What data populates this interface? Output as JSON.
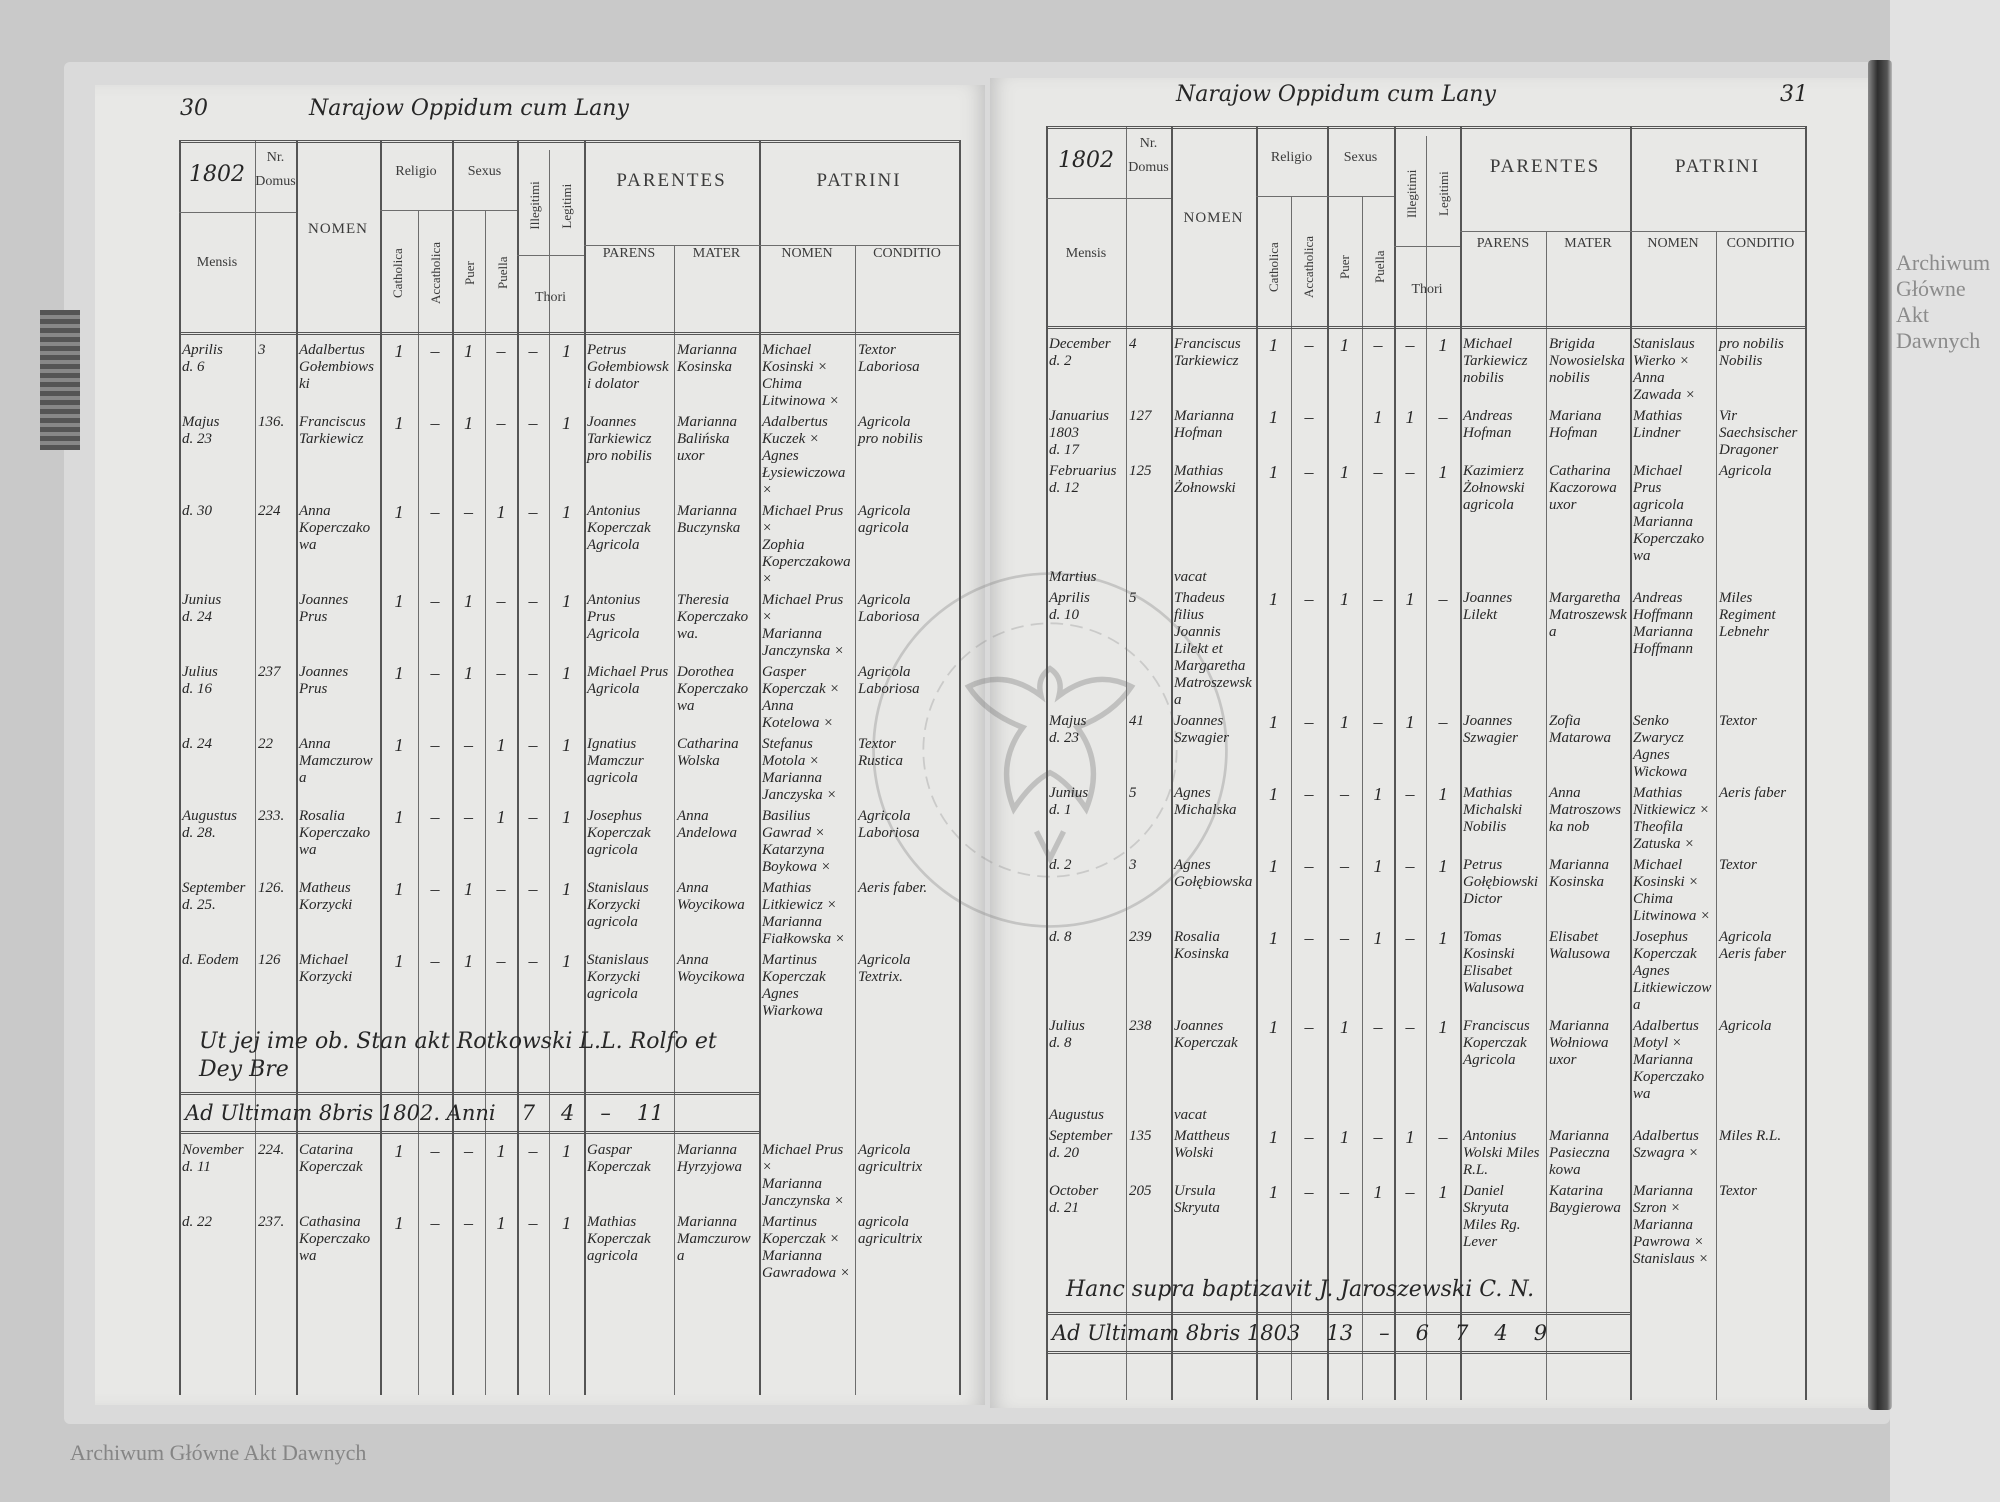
{
  "watermark": "Archiwum Główne Akt Dawnych",
  "seal_text": "ARCHIWUM GŁÓWNE AKT DAWNYCH",
  "header": {
    "mensis": "Mensis",
    "nr": "Nr.",
    "domus": "Domus",
    "nomen": "NOMEN",
    "religio": "Religio",
    "catholica": "Catholica",
    "acatholica": "Accatholica",
    "sexus": "Sexus",
    "puer": "Puer",
    "puella": "Puella",
    "illegitimi": "Illegitimi",
    "legitimi": "Legitimi",
    "thori": "Thori",
    "parentes": "PARENTES",
    "parens": "PARENS",
    "mater": "MATER",
    "patrini": "PATRINI",
    "patrini_nomen": "NOMEN",
    "conditio": "CONDITIO"
  },
  "left_page": {
    "page_number": "30",
    "title": "Narajow Oppidum cum Lany",
    "year": "1802",
    "entries": [
      {
        "mensis": "Aprilis",
        "dies": "d. 6",
        "nr": "3",
        "nomen": "Adalbertus Gołembiowski",
        "marks": [
          "1",
          "–",
          "1",
          "–",
          "–",
          "1"
        ],
        "parens": "Petrus Gołembiowski dolator",
        "mater": "Marianna Kosinska",
        "patrini": "Michael Kosinski ×\nChima Litwinowa ×",
        "conditio": "Textor\nLaboriosa"
      },
      {
        "mensis": "Majus",
        "dies": "d. 23",
        "nr": "136.",
        "nomen": "Franciscus Tarkiewicz",
        "marks": [
          "1",
          "–",
          "1",
          "–",
          "–",
          "1"
        ],
        "parens": "Joannes Tarkiewicz pro nobilis",
        "mater": "Marianna Balińska uxor",
        "patrini": "Adalbertus Kuczek ×\nAgnes Łysiewiczowa ×",
        "conditio": "Agricola\npro nobilis"
      },
      {
        "mensis": "",
        "dies": "d. 30",
        "nr": "224",
        "nomen": "Anna Koperczakowa",
        "marks": [
          "1",
          "–",
          "–",
          "1",
          "–",
          "1"
        ],
        "parens": "Antonius Koperczak Agricola",
        "mater": "Marianna Buczynska",
        "patrini": "Michael Prus ×\nZophia Koperczakowa ×",
        "conditio": "Agricola\nagricola"
      },
      {
        "mensis": "Junius",
        "dies": "d. 24",
        "nr": "",
        "nomen": "Joannes Prus",
        "marks": [
          "1",
          "–",
          "1",
          "–",
          "–",
          "1"
        ],
        "parens": "Antonius Prus Agricola",
        "mater": "Theresia Koperczakowa.",
        "patrini": "Michael Prus ×\nMarianna Janczynska ×",
        "conditio": "Agricola\nLaboriosa"
      },
      {
        "mensis": "Julius",
        "dies": "d. 16",
        "nr": "237",
        "nomen": "Joannes Prus",
        "marks": [
          "1",
          "–",
          "1",
          "–",
          "–",
          "1"
        ],
        "parens": "Michael Prus Agricola",
        "mater": "Dorothea Koperczakowa",
        "patrini": "Gasper Koperczak ×\nAnna Kotelowa ×",
        "conditio": "Agricola\nLaboriosa"
      },
      {
        "mensis": "",
        "dies": "d. 24",
        "nr": "22",
        "nomen": "Anna Mamczurowa",
        "marks": [
          "1",
          "–",
          "–",
          "1",
          "–",
          "1"
        ],
        "parens": "Ignatius Mamczur agricola",
        "mater": "Catharina Wolska",
        "patrini": "Stefanus Motola ×\nMarianna Janczyska ×",
        "conditio": "Textor\nRustica"
      },
      {
        "mensis": "Augustus",
        "dies": "d. 28.",
        "nr": "233.",
        "nomen": "Rosalia Koperczakowa",
        "marks": [
          "1",
          "–",
          "–",
          "1",
          "–",
          "1"
        ],
        "parens": "Josephus Koperczak agricola",
        "mater": "Anna Andelowa",
        "patrini": "Basilius Gawrad ×\nKatarzyna Boykowa ×",
        "conditio": "Agricola\nLaboriosa"
      },
      {
        "mensis": "September",
        "dies": "d. 25.",
        "nr": "126.",
        "nomen": "Matheus Korzycki",
        "marks": [
          "1",
          "–",
          "1",
          "–",
          "–",
          "1"
        ],
        "parens": "Stanislaus Korzycki agricola",
        "mater": "Anna Woycikowa",
        "patrini": "Mathias Litkiewicz ×\nMarianna Fiałkowska ×",
        "conditio": "Aeris faber."
      },
      {
        "mensis": "",
        "dies": "d. Eodem",
        "nr": "126",
        "nomen": "Michael Korzycki",
        "marks": [
          "1",
          "–",
          "1",
          "–",
          "–",
          "1"
        ],
        "parens": "Stanislaus Korzycki agricola",
        "mater": "Anna Woycikowa",
        "patrini": "Martinus Koperczak\nAgnes Wiarkowa",
        "conditio": "Agricola\nTextrix."
      },
      {
        "mensis": "November",
        "dies": "d. 11",
        "nr": "224.",
        "nomen": "Catarina Koperczak",
        "marks": [
          "1",
          "–",
          "–",
          "1",
          "–",
          "1"
        ],
        "parens": "Gaspar Koperczak",
        "mater": "Marianna Hyrzyjowa",
        "patrini": "Michael Prus ×\nMarianna Janczynska ×",
        "conditio": "Agricola\nagricultrix"
      },
      {
        "mensis": "",
        "dies": "d. 22",
        "nr": "237.",
        "nomen": "Cathasina Koperczakowa",
        "marks": [
          "1",
          "–",
          "–",
          "1",
          "–",
          "1"
        ],
        "parens": "Mathias Koperczak agricola",
        "mater": "Marianna Mamczurowa",
        "patrini": "Martinus Koperczak ×\nMarianna Gawradowa ×",
        "conditio": "agricola\nagricultrix"
      }
    ],
    "note": "Ut jej ime ob. Stan akt Rotkowski  L.L. Rolfo et Dey Bre",
    "totals": {
      "label": "Ad Ultimam 8bris 1802. Anni",
      "values": [
        "7",
        "4",
        "–",
        "11"
      ]
    }
  },
  "right_page": {
    "page_number": "31",
    "title": "Narajow Oppidum cum Lany",
    "year": "1802",
    "entries": [
      {
        "mensis": "December",
        "dies": "d. 2",
        "nr": "4",
        "nomen": "Franciscus Tarkiewicz",
        "marks": [
          "1",
          "–",
          "1",
          "–",
          "–",
          "1"
        ],
        "parens": "Michael Tarkiewicz nobilis",
        "mater": "Brigida Nowosielska nobilis",
        "patrini": "Stanislaus Wierko ×\nAnna Zawada ×",
        "conditio": "pro nobilis\nNobilis"
      },
      {
        "mensis": "Januarius 1803",
        "dies": "d. 17",
        "nr": "127",
        "nomen": "Marianna Hofman",
        "marks": [
          "1",
          "–",
          "",
          "1",
          "1",
          "–"
        ],
        "parens": "Andreas Hofman",
        "mater": "Mariana Hofman",
        "patrini": "Mathias Lindner",
        "conditio": "Vir Saechsischer Dragoner"
      },
      {
        "mensis": "Februarius",
        "dies": "d. 12",
        "nr": "125",
        "nomen": "Mathias Żołnowski",
        "marks": [
          "1",
          "–",
          "1",
          "–",
          "–",
          "1"
        ],
        "parens": "Kazimierz Żołnowski agricola",
        "mater": "Catharina Kaczorowa uxor",
        "patrini": "Michael Prus agricola\nMarianna Koperczakowa",
        "conditio": "Agricola"
      },
      {
        "mensis": "Martius",
        "dies": "",
        "nr": "",
        "nomen": "vacat",
        "marks": [
          "",
          "",
          "",
          "",
          "",
          ""
        ],
        "parens": "",
        "mater": "",
        "patrini": "",
        "conditio": ""
      },
      {
        "mensis": "Aprilis",
        "dies": "d. 10",
        "nr": "5",
        "nomen": "Thadeus filius Joannis Lilekt et Margaretha Matroszewska",
        "marks": [
          "1",
          "–",
          "1",
          "–",
          "1",
          "–"
        ],
        "parens": "Joannes Lilekt",
        "mater": "Margaretha Matroszewska",
        "patrini": "Andreas Hoffmann\nMarianna Hoffmann",
        "conditio": "Miles Regiment Lebnehr"
      },
      {
        "mensis": "Majus",
        "dies": "d. 23",
        "nr": "41",
        "nomen": "Joannes Szwagier",
        "marks": [
          "1",
          "–",
          "1",
          "–",
          "1",
          "–"
        ],
        "parens": "Joannes Szwagier",
        "mater": "Zofia Matarowa",
        "patrini": "Senko Zwarycz\nAgnes Wickowa",
        "conditio": "Textor"
      },
      {
        "mensis": "Junius",
        "dies": "d. 1",
        "nr": "5",
        "nomen": "Agnes Michalska",
        "marks": [
          "1",
          "–",
          "–",
          "1",
          "–",
          "1"
        ],
        "parens": "Mathias Michalski Nobilis",
        "mater": "Anna Matroszowska nob",
        "patrini": "Mathias Nitkiewicz ×\nTheofila Zatuska ×",
        "conditio": "Aeris faber"
      },
      {
        "mensis": "",
        "dies": "d. 2",
        "nr": "3",
        "nomen": "Agnes Gołębiowska",
        "marks": [
          "1",
          "–",
          "–",
          "1",
          "–",
          "1"
        ],
        "parens": "Petrus Gołębiowski Dictor",
        "mater": "Marianna Kosinska",
        "patrini": "Michael Kosinski ×\nChima Litwinowa ×",
        "conditio": "Textor"
      },
      {
        "mensis": "",
        "dies": "d. 8",
        "nr": "239",
        "nomen": "Rosalia Kosinska",
        "marks": [
          "1",
          "–",
          "–",
          "1",
          "–",
          "1"
        ],
        "parens": "Tomas Kosinski Elisabet Walusowa",
        "mater": "Elisabet Walusowa",
        "patrini": "Josephus Koperczak\nAgnes Litkiewiczowa",
        "conditio": "Agricola\nAeris faber"
      },
      {
        "mensis": "Julius",
        "dies": "d. 8",
        "nr": "238",
        "nomen": "Joannes Koperczak",
        "marks": [
          "1",
          "–",
          "1",
          "–",
          "–",
          "1"
        ],
        "parens": "Franciscus Koperczak Agricola",
        "mater": "Marianna Wołniowa uxor",
        "patrini": "Adalbertus Motyl ×\nMarianna Koperczakowa",
        "conditio": "Agricola"
      },
      {
        "mensis": "Augustus",
        "dies": "",
        "nr": "",
        "nomen": "vacat",
        "marks": [
          "",
          "",
          "",
          "",
          "",
          ""
        ],
        "parens": "",
        "mater": "",
        "patrini": "",
        "conditio": ""
      },
      {
        "mensis": "September",
        "dies": "d. 20",
        "nr": "135",
        "nomen": "Mattheus Wolski",
        "marks": [
          "1",
          "–",
          "1",
          "–",
          "1",
          "–"
        ],
        "parens": "Antonius Wolski Miles R.L.",
        "mater": "Marianna Pasieczna kowa",
        "patrini": "Adalbertus Szwagra ×",
        "conditio": "Miles R.L."
      },
      {
        "mensis": "October",
        "dies": "d. 21",
        "nr": "205",
        "nomen": "Ursula Skryuta",
        "marks": [
          "1",
          "–",
          "–",
          "1",
          "–",
          "1"
        ],
        "parens": "Daniel Skryuta Miles Rg. Lever",
        "mater": "Katarina Baygierowa",
        "patrini": "Marianna Szron ×\nMarianna Pawrowa ×\nStanislaus ×",
        "conditio": "Textor"
      }
    ],
    "note": "Hanc supra baptizavit J. Jaroszewski C. N.",
    "totals": {
      "label": "Ad Ultimam 8bris 1803",
      "values": [
        "13",
        "–",
        "6",
        "7",
        "4",
        "9"
      ]
    }
  }
}
